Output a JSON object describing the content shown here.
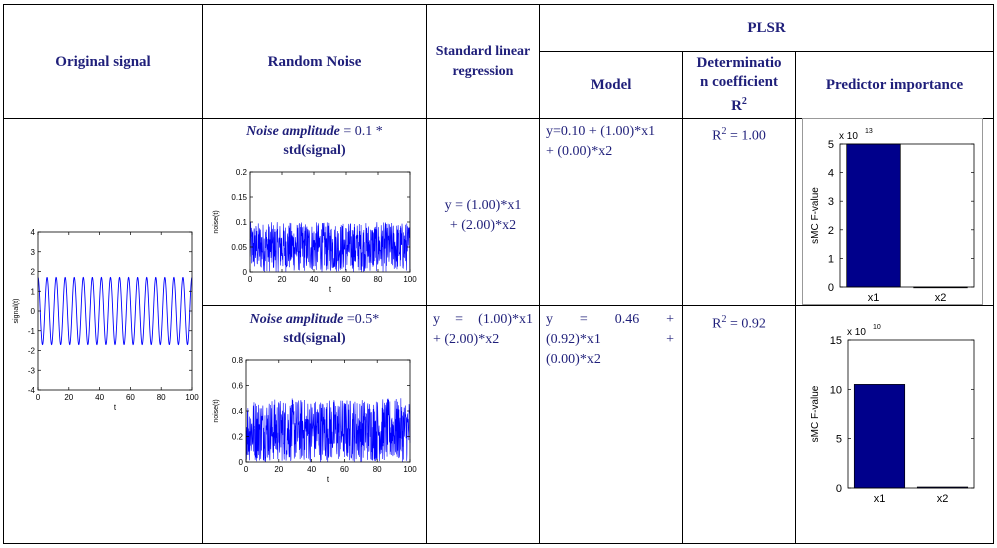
{
  "header": {
    "original_signal": "Original signal",
    "random_noise": "Random Noise",
    "standard_linear_regression": "Standard linear regression",
    "plsr": "PLSR",
    "model": "Model",
    "determination_line1": "Determinatio",
    "determination_line2": "n coefficient",
    "determination_r": "R",
    "determination_sup": "2",
    "predictor_importance": "Predictor importance"
  },
  "rows": [
    {
      "noise_label": "Noise amplitude",
      "noise_value": " = 0.1 *",
      "noise_line2": "std(signal)",
      "slr_line1": "y = (1.00)*x1",
      "slr_line2": "+ (2.00)*x2",
      "model_line1": "y=0.10 + (1.00)*x1",
      "model_line2": "+ (0.00)*x2",
      "r2_prefix": "R",
      "r2_sup": "2",
      "r2_value": " = 1.00"
    },
    {
      "noise_label": "Noise amplitude",
      "noise_value": " =0.5*",
      "noise_line2": "std(signal)",
      "slr_line1": "y = (1.00)*x1",
      "slr_line2": "+ (2.00)*x2",
      "model_line1": "y = 0.46 +",
      "model_line2": "(0.92)*x1 +",
      "model_line3": "(0.00)*x2",
      "r2_prefix": "R",
      "r2_sup": "2",
      "r2_value": " = 0.92"
    }
  ],
  "chart_data": [
    {
      "id": "signal",
      "type": "line",
      "xlabel": "t",
      "ylabel": "signal(t)",
      "xlim": [
        0,
        100
      ],
      "ylim": [
        -4,
        4
      ],
      "xticks": [
        "0",
        "20",
        "40",
        "60",
        "80",
        "100"
      ],
      "yticks": [
        "-4",
        "-3",
        "-2",
        "-1",
        "0",
        "1",
        "2",
        "3",
        "4"
      ],
      "series": [
        {
          "values_desc": "",
          "amplitude": 1.7,
          "cycles": 17
        }
      ],
      "color": "#0000ff"
    },
    {
      "id": "noise1",
      "type": "line",
      "xlabel": "t",
      "ylabel": "noise(t)",
      "xlim": [
        0,
        100
      ],
      "ylim": [
        0,
        0.2
      ],
      "xticks": [
        "0",
        "20",
        "40",
        "60",
        "80",
        "100"
      ],
      "yticks": [
        "0",
        "0.05",
        "0.1",
        "0.15",
        "0.2"
      ],
      "noise_min": 0.0,
      "noise_max": 0.1,
      "color": "#0000ff"
    },
    {
      "id": "bar1",
      "type": "bar",
      "ylabel": "sMC F-value",
      "exponent_base": "x 10",
      "exponent": "13",
      "categories": [
        "x1",
        "x2"
      ],
      "values": [
        5,
        0
      ],
      "ylim": [
        0,
        5
      ],
      "yticks": [
        "0",
        "1",
        "2",
        "3",
        "4",
        "5"
      ],
      "color": "#00008b"
    },
    {
      "id": "noise2",
      "type": "line",
      "xlabel": "t",
      "ylabel": "noise(t)",
      "xlim": [
        0,
        100
      ],
      "ylim": [
        0,
        0.8
      ],
      "xticks": [
        "0",
        "20",
        "40",
        "60",
        "80",
        "100"
      ],
      "yticks": [
        "0",
        "0.2",
        "0.4",
        "0.6",
        "0.8"
      ],
      "noise_min": 0.0,
      "noise_max": 0.5,
      "color": "#0000ff"
    },
    {
      "id": "bar2",
      "type": "bar",
      "ylabel": "sMC F-value",
      "exponent_base": "x 10",
      "exponent": "10",
      "categories": [
        "x1",
        "x2"
      ],
      "values": [
        10.5,
        0.1
      ],
      "ylim": [
        0,
        15
      ],
      "yticks": [
        "0",
        "5",
        "10",
        "15"
      ],
      "color": "#00008b"
    }
  ]
}
